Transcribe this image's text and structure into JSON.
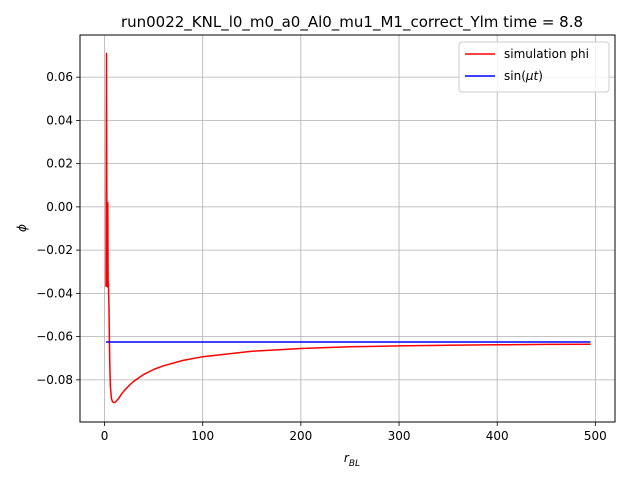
{
  "chart_data": {
    "type": "line",
    "title": "run0022_KNL_l0_m0_a0_Al0_mu1_M1_correct_Ylm time = 8.8",
    "xlabel_main": "r",
    "xlabel_sub": "BL",
    "ylabel": "ϕ",
    "xlim": [
      -25,
      520
    ],
    "ylim": [
      -0.0995,
      0.0795
    ],
    "xticks": [
      0,
      100,
      200,
      300,
      400,
      500
    ],
    "xtick_labels": [
      "0",
      "100",
      "200",
      "300",
      "400",
      "500"
    ],
    "yticks": [
      0.06,
      0.04,
      0.02,
      0.0,
      -0.02,
      -0.04,
      -0.06,
      -0.08
    ],
    "ytick_labels": [
      "0.06",
      "0.04",
      "0.02",
      "0.00",
      "−0.02",
      "−0.04",
      "−0.06",
      "−0.08"
    ],
    "grid": true,
    "legend_position": "upper-right",
    "series": [
      {
        "name": "simulation phi",
        "color": "#ff0000",
        "x": [
          1.5,
          2.0,
          2.5,
          3.0,
          3.3,
          3.6,
          4.0,
          4.5,
          5.0,
          5.5,
          6.0,
          7.0,
          8.0,
          9.0,
          10.0,
          11.0,
          12.0,
          14.0,
          16.0,
          18.0,
          20.0,
          25.0,
          30.0,
          40.0,
          50.0,
          60.0,
          80.0,
          100.0,
          150.0,
          200.0,
          250.0,
          300.0,
          350.0,
          400.0,
          450.0,
          495.0
        ],
        "y": [
          -0.037,
          0.071,
          -0.03,
          -0.037,
          0.002,
          -0.034,
          -0.037,
          -0.047,
          -0.062,
          -0.075,
          -0.083,
          -0.0885,
          -0.09,
          -0.0905,
          -0.0905,
          -0.0903,
          -0.0898,
          -0.0888,
          -0.0875,
          -0.0862,
          -0.085,
          -0.0826,
          -0.0806,
          -0.0775,
          -0.0752,
          -0.0735,
          -0.071,
          -0.0693,
          -0.0668,
          -0.0655,
          -0.0647,
          -0.0643,
          -0.064,
          -0.0638,
          -0.0636,
          -0.0635
        ]
      },
      {
        "name": "sin(μt)",
        "legend_prefix": "sin(",
        "legend_mu": "μ",
        "legend_t": "t",
        "legend_suffix": ")",
        "color": "#0000ff",
        "x": [
          1.5,
          495.0
        ],
        "y": [
          -0.0625,
          -0.0625
        ]
      }
    ]
  }
}
